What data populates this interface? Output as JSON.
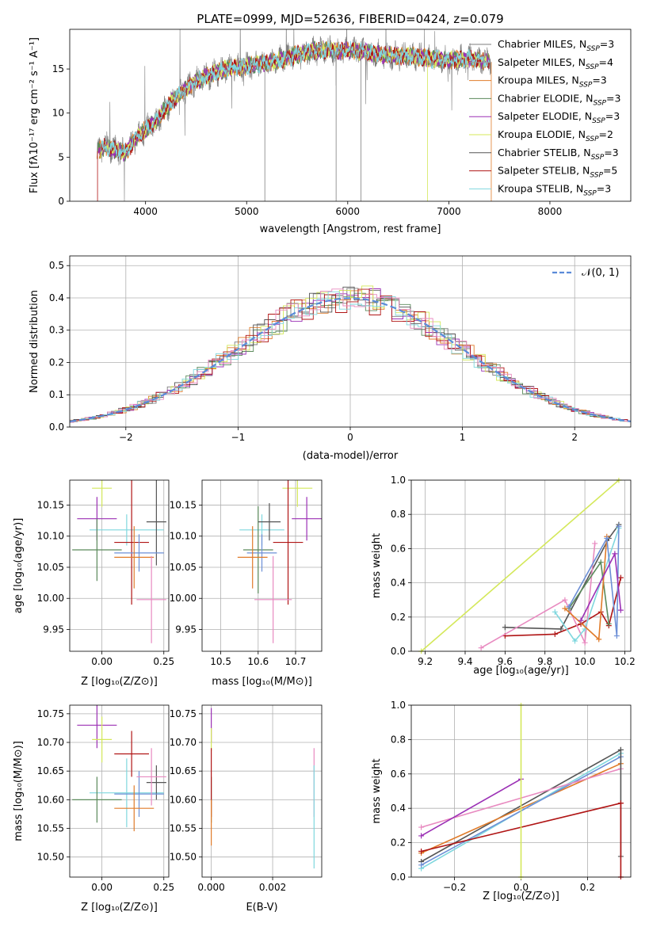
{
  "figure_title": "PLATE=0999, MJD=52636, FIBERID=0424, z=0.079",
  "colors": {
    "chabrier_miles": "#7f7f7f",
    "salpeter_miles": "#9b9b9b",
    "kroupa_miles": "#e07b2a",
    "chabrier_elodie": "#5b8a5b",
    "salpeter_elodie": "#9b30b5",
    "kroupa_elodie": "#d4e85a",
    "chabrier_stelib": "#555555",
    "salpeter_stelib": "#b01515",
    "kroupa_stelib": "#7fd7de",
    "gauss": "#5b8bd8",
    "extra_pink": "#e88ac0",
    "extra_blue": "#6c8fd6"
  },
  "chart_data": [
    {
      "type": "line",
      "id": "spectrum",
      "title": "PLATE=0999, MJD=52636, FIBERID=0424, z=0.079",
      "xlabel": "wavelength [Angstrom, rest frame]",
      "ylabel": "Flux [f_λ 10^-17 erg cm^-2 s^-1 A^-1]",
      "xlim": [
        3250,
        8800
      ],
      "ylim": [
        0,
        19.5
      ],
      "xticks": [
        4000,
        5000,
        6000,
        7000,
        8000
      ],
      "yticks": [
        0,
        5,
        10,
        15
      ],
      "grid": false,
      "legend_position": "top-right",
      "legend": [
        {
          "base": "Chabrier MILES, N",
          "sub": "SSP",
          "tail": "=3",
          "color": "#7f7f7f"
        },
        {
          "base": "Salpeter MILES, N",
          "sub": "SSP",
          "tail": "=4",
          "color": "#9b9b9b"
        },
        {
          "base": "Kroupa MILES, N",
          "sub": "SSP",
          "tail": "=3",
          "color": "#e07b2a"
        },
        {
          "base": "Chabrier ELODIE, N",
          "sub": "SSP",
          "tail": "=3",
          "color": "#5b8a5b"
        },
        {
          "base": "Salpeter ELODIE, N",
          "sub": "SSP",
          "tail": "=3",
          "color": "#9b30b5"
        },
        {
          "base": "Kroupa ELODIE, N",
          "sub": "SSP",
          "tail": "=2",
          "color": "#d4e85a"
        },
        {
          "base": "Chabrier STELIB, N",
          "sub": "SSP",
          "tail": "=3",
          "color": "#555555"
        },
        {
          "base": "Salpeter STELIB, N",
          "sub": "SSP",
          "tail": "=5",
          "color": "#b01515"
        },
        {
          "base": "Kroupa STELIB, N",
          "sub": "SSP",
          "tail": "=3",
          "color": "#7fd7de"
        }
      ],
      "continuum": {
        "x": [
          3500,
          3600,
          3700,
          3800,
          3900,
          4000,
          4100,
          4200,
          4300,
          4400,
          4500,
          4600,
          4700,
          4800,
          4900,
          5000,
          5100,
          5200,
          5300,
          5400,
          5500,
          5600,
          5700,
          5800,
          5900,
          6000,
          6100,
          6200,
          6300,
          6400,
          6500,
          6600,
          6700,
          6800,
          6900,
          7000,
          7100,
          7200,
          7300,
          7400
        ],
        "y": [
          5.5,
          6.2,
          5.8,
          5.5,
          7.0,
          8.2,
          9.0,
          10.5,
          11.8,
          12.8,
          13.6,
          14.2,
          14.6,
          15.0,
          15.2,
          15.3,
          15.6,
          15.7,
          15.9,
          16.3,
          16.6,
          16.9,
          17.1,
          17.2,
          17.0,
          17.2,
          17.0,
          16.9,
          16.7,
          16.5,
          16.5,
          16.5,
          16.4,
          16.2,
          16.1,
          16.0,
          16.1,
          16.2,
          16.0,
          15.8
        ]
      }
    },
    {
      "type": "bar",
      "id": "residuals",
      "xlabel": "(data-model)/error",
      "ylabel": "Normed distribution",
      "xlim": [
        -2.5,
        2.5
      ],
      "ylim": [
        0,
        0.53
      ],
      "xticks": [
        -2,
        -1,
        0,
        1,
        2
      ],
      "yticks": [
        0.0,
        0.1,
        0.2,
        0.3,
        0.4,
        0.5
      ],
      "grid": true,
      "legend_position": "top-right",
      "legend_label": "𝒩(0, 1)"
    },
    {
      "type": "scatter",
      "id": "age_vs_Z",
      "xlabel": "Z [log10(Z/Z⊙)]",
      "ylabel": "age [log10(age/yr)]",
      "xlim": [
        -0.13,
        0.27
      ],
      "ylim": [
        9.915,
        10.19
      ],
      "xticks": [
        0.0,
        0.25
      ],
      "yticks": [
        9.95,
        10.0,
        10.05,
        10.1,
        10.15
      ],
      "grid": true,
      "points": [
        {
          "x": -0.02,
          "y": 10.128,
          "xerr": 0.08,
          "yerr": 0.035,
          "color": "#9b30b5"
        },
        {
          "x": 0.0,
          "y": 10.177,
          "xerr": 0.04,
          "yerr": 0.03,
          "color": "#d4e85a"
        },
        {
          "x": 0.1,
          "y": 10.11,
          "xerr": 0.15,
          "yerr": 0.025,
          "color": "#7fd7de"
        },
        {
          "x": -0.02,
          "y": 10.078,
          "xerr": 0.1,
          "yerr": 0.05,
          "color": "#5b8a5b"
        },
        {
          "x": 0.12,
          "y": 10.09,
          "xerr": 0.07,
          "yerr": 0.1,
          "color": "#b01515"
        },
        {
          "x": 0.22,
          "y": 10.123,
          "xerr": 0.04,
          "yerr": 0.07,
          "color": "#555555"
        },
        {
          "x": 0.15,
          "y": 10.073,
          "xerr": 0.1,
          "yerr": 0.03,
          "color": "#6c8fd6"
        },
        {
          "x": 0.13,
          "y": 10.066,
          "xerr": 0.08,
          "yerr": 0.05,
          "color": "#e07b2a"
        },
        {
          "x": 0.2,
          "y": 9.998,
          "xerr": 0.06,
          "yerr": 0.07,
          "color": "#e88ac0"
        }
      ]
    },
    {
      "type": "scatter",
      "id": "age_vs_mass",
      "xlabel": "mass [log10(M/M⊙)]",
      "ylabel": "",
      "xlim": [
        10.45,
        10.77
      ],
      "ylim": [
        9.915,
        10.19
      ],
      "xticks": [
        10.5,
        10.6,
        10.7
      ],
      "yticks": [
        9.95,
        10.0,
        10.05,
        10.1,
        10.15
      ],
      "grid": true,
      "points": [
        {
          "x": 10.73,
          "y": 10.128,
          "xerr": 0.04,
          "yerr": 0.035,
          "color": "#9b30b5"
        },
        {
          "x": 10.705,
          "y": 10.177,
          "xerr": 0.04,
          "yerr": 0.03,
          "color": "#d4e85a"
        },
        {
          "x": 10.61,
          "y": 10.11,
          "xerr": 0.06,
          "yerr": 0.025,
          "color": "#7fd7de"
        },
        {
          "x": 10.6,
          "y": 10.078,
          "xerr": 0.04,
          "yerr": 0.07,
          "color": "#5b8a5b"
        },
        {
          "x": 10.68,
          "y": 10.09,
          "xerr": 0.04,
          "yerr": 0.1,
          "color": "#b01515"
        },
        {
          "x": 10.63,
          "y": 10.123,
          "xerr": 0.03,
          "yerr": 0.03,
          "color": "#555555"
        },
        {
          "x": 10.61,
          "y": 10.073,
          "xerr": 0.04,
          "yerr": 0.03,
          "color": "#6c8fd6"
        },
        {
          "x": 10.585,
          "y": 10.066,
          "xerr": 0.04,
          "yerr": 0.05,
          "color": "#e07b2a"
        },
        {
          "x": 10.64,
          "y": 9.998,
          "xerr": 0.05,
          "yerr": 0.07,
          "color": "#e88ac0"
        }
      ]
    },
    {
      "type": "line",
      "id": "massweight_vs_age",
      "xlabel": "age [log10(age/yr)]",
      "ylabel": "mass weight",
      "xlim": [
        9.13,
        10.23
      ],
      "ylim": [
        0,
        1.0
      ],
      "xticks": [
        9.2,
        9.4,
        9.6,
        9.8,
        10.0,
        10.2
      ],
      "yticks": [
        0.0,
        0.2,
        0.4,
        0.6,
        0.8,
        1.0
      ],
      "grid": true,
      "series": [
        {
          "color": "#d4e85a",
          "x": [
            9.18,
            10.17
          ],
          "y": [
            0.0,
            1.0
          ]
        },
        {
          "color": "#b01515",
          "x": [
            9.6,
            9.85,
            9.98,
            10.08,
            10.12,
            10.18
          ],
          "y": [
            0.09,
            0.1,
            0.16,
            0.23,
            0.15,
            0.43
          ]
        },
        {
          "color": "#555555",
          "x": [
            9.6,
            9.88,
            10.12,
            10.17
          ],
          "y": [
            0.14,
            0.13,
            0.66,
            0.74
          ]
        },
        {
          "color": "#e88ac0",
          "x": [
            9.48,
            9.9,
            10.0,
            10.05
          ],
          "y": [
            0.02,
            0.3,
            0.05,
            0.63
          ]
        },
        {
          "color": "#7fd7de",
          "x": [
            9.85,
            9.95,
            10.0,
            10.17
          ],
          "y": [
            0.23,
            0.06,
            0.13,
            0.72
          ]
        },
        {
          "color": "#5b8a5b",
          "x": [
            9.92,
            10.08,
            10.12
          ],
          "y": [
            0.25,
            0.52,
            0.16
          ]
        },
        {
          "color": "#e07b2a",
          "x": [
            9.9,
            10.07,
            10.11
          ],
          "y": [
            0.25,
            0.07,
            0.67
          ]
        },
        {
          "color": "#6c8fd6",
          "x": [
            9.92,
            10.11,
            10.16,
            10.17
          ],
          "y": [
            0.26,
            0.66,
            0.09,
            0.73
          ]
        },
        {
          "color": "#9b30b5",
          "x": [
            9.98,
            10.15,
            10.18
          ],
          "y": [
            0.18,
            0.57,
            0.24
          ]
        }
      ]
    },
    {
      "type": "scatter",
      "id": "mass_vs_Z",
      "xlabel": "Z [log10(Z/Z⊙)]",
      "ylabel": "mass [log10(M/M⊙)]",
      "xlim": [
        -0.13,
        0.27
      ],
      "ylim": [
        10.465,
        10.765
      ],
      "xticks": [
        0.0,
        0.25
      ],
      "yticks": [
        10.5,
        10.55,
        10.6,
        10.65,
        10.7,
        10.75
      ],
      "grid": true,
      "points": [
        {
          "x": -0.02,
          "y": 10.73,
          "xerr": 0.08,
          "yerr": 0.04,
          "color": "#9b30b5"
        },
        {
          "x": 0.0,
          "y": 10.705,
          "xerr": 0.04,
          "yerr": 0.04,
          "color": "#d4e85a"
        },
        {
          "x": 0.1,
          "y": 10.612,
          "xerr": 0.15,
          "yerr": 0.06,
          "color": "#7fd7de"
        },
        {
          "x": -0.02,
          "y": 10.6,
          "xerr": 0.1,
          "yerr": 0.04,
          "color": "#5b8a5b"
        },
        {
          "x": 0.12,
          "y": 10.68,
          "xerr": 0.07,
          "yerr": 0.04,
          "color": "#b01515"
        },
        {
          "x": 0.22,
          "y": 10.63,
          "xerr": 0.04,
          "yerr": 0.03,
          "color": "#555555"
        },
        {
          "x": 0.15,
          "y": 10.61,
          "xerr": 0.1,
          "yerr": 0.04,
          "color": "#6c8fd6"
        },
        {
          "x": 0.13,
          "y": 10.585,
          "xerr": 0.08,
          "yerr": 0.04,
          "color": "#e07b2a"
        },
        {
          "x": 0.2,
          "y": 10.64,
          "xerr": 0.06,
          "yerr": 0.05,
          "color": "#e88ac0"
        }
      ]
    },
    {
      "type": "scatter",
      "id": "mass_vs_ebv",
      "xlabel": "E(B-V)",
      "ylabel": "",
      "xlim": [
        -0.0003,
        0.0036
      ],
      "ylim": [
        10.465,
        10.765
      ],
      "xticks": [
        0.0,
        0.002
      ],
      "yticks": [
        10.5,
        10.55,
        10.6,
        10.65,
        10.7,
        10.75
      ],
      "grid": true,
      "points": [
        {
          "x": 0.0,
          "y": 10.73,
          "xerr": 0,
          "yerr": 0.03,
          "color": "#9b30b5"
        },
        {
          "x": 0.0,
          "y": 10.705,
          "xerr": 0,
          "yerr": 0.02,
          "color": "#d4e85a"
        },
        {
          "x": 0.0,
          "y": 10.6,
          "xerr": 0,
          "yerr": 0.04,
          "color": "#5b8a5b"
        },
        {
          "x": 0.0,
          "y": 10.63,
          "xerr": 0,
          "yerr": 0.06,
          "color": "#b01515"
        },
        {
          "x": 0.0,
          "y": 10.56,
          "xerr": 0,
          "yerr": 0.04,
          "color": "#e07b2a"
        },
        {
          "x": 0.00335,
          "y": 10.63,
          "xerr": 0,
          "yerr": 0.06,
          "color": "#e88ac0"
        },
        {
          "x": 0.00335,
          "y": 10.57,
          "xerr": 0,
          "yerr": 0.09,
          "color": "#7fd7de"
        }
      ]
    },
    {
      "type": "line",
      "id": "massweight_vs_Z",
      "xlabel": "Z [log10(Z/Z⊙)]",
      "ylabel": "mass weight",
      "xlim": [
        -0.33,
        0.33
      ],
      "ylim": [
        0,
        1.0
      ],
      "xticks": [
        -0.2,
        0.0,
        0.2
      ],
      "yticks": [
        0.0,
        0.2,
        0.4,
        0.6,
        0.8,
        1.0
      ],
      "grid": true,
      "series": [
        {
          "color": "#555555",
          "x": [
            -0.3,
            0.3
          ],
          "y": [
            0.09,
            0.74
          ]
        },
        {
          "color": "#e07b2a",
          "x": [
            -0.3,
            0.3
          ],
          "y": [
            0.14,
            0.66
          ]
        },
        {
          "color": "#7fd7de",
          "x": [
            -0.3,
            0.3
          ],
          "y": [
            0.05,
            0.72
          ]
        },
        {
          "color": "#6c8fd6",
          "x": [
            -0.3,
            0.3
          ],
          "y": [
            0.07,
            0.7
          ]
        },
        {
          "color": "#b01515",
          "x": [
            -0.3,
            0.3
          ],
          "y": [
            0.15,
            0.43
          ]
        },
        {
          "color": "#e88ac0",
          "x": [
            -0.3,
            0.3
          ],
          "y": [
            0.29,
            0.63
          ]
        },
        {
          "color": "#9b30b5",
          "x": [
            -0.3,
            0.0
          ],
          "y": [
            0.24,
            0.57
          ]
        },
        {
          "color": "#d4e85a",
          "x": [
            0.0,
            0.0
          ],
          "y": [
            0.0,
            1.0
          ]
        },
        {
          "color": "#555555",
          "x": [
            0.3,
            0.3
          ],
          "y": [
            0.12,
            0.74
          ]
        },
        {
          "color": "#b01515",
          "x": [
            0.3,
            0.3
          ],
          "y": [
            0.0,
            0.43
          ]
        }
      ]
    }
  ]
}
